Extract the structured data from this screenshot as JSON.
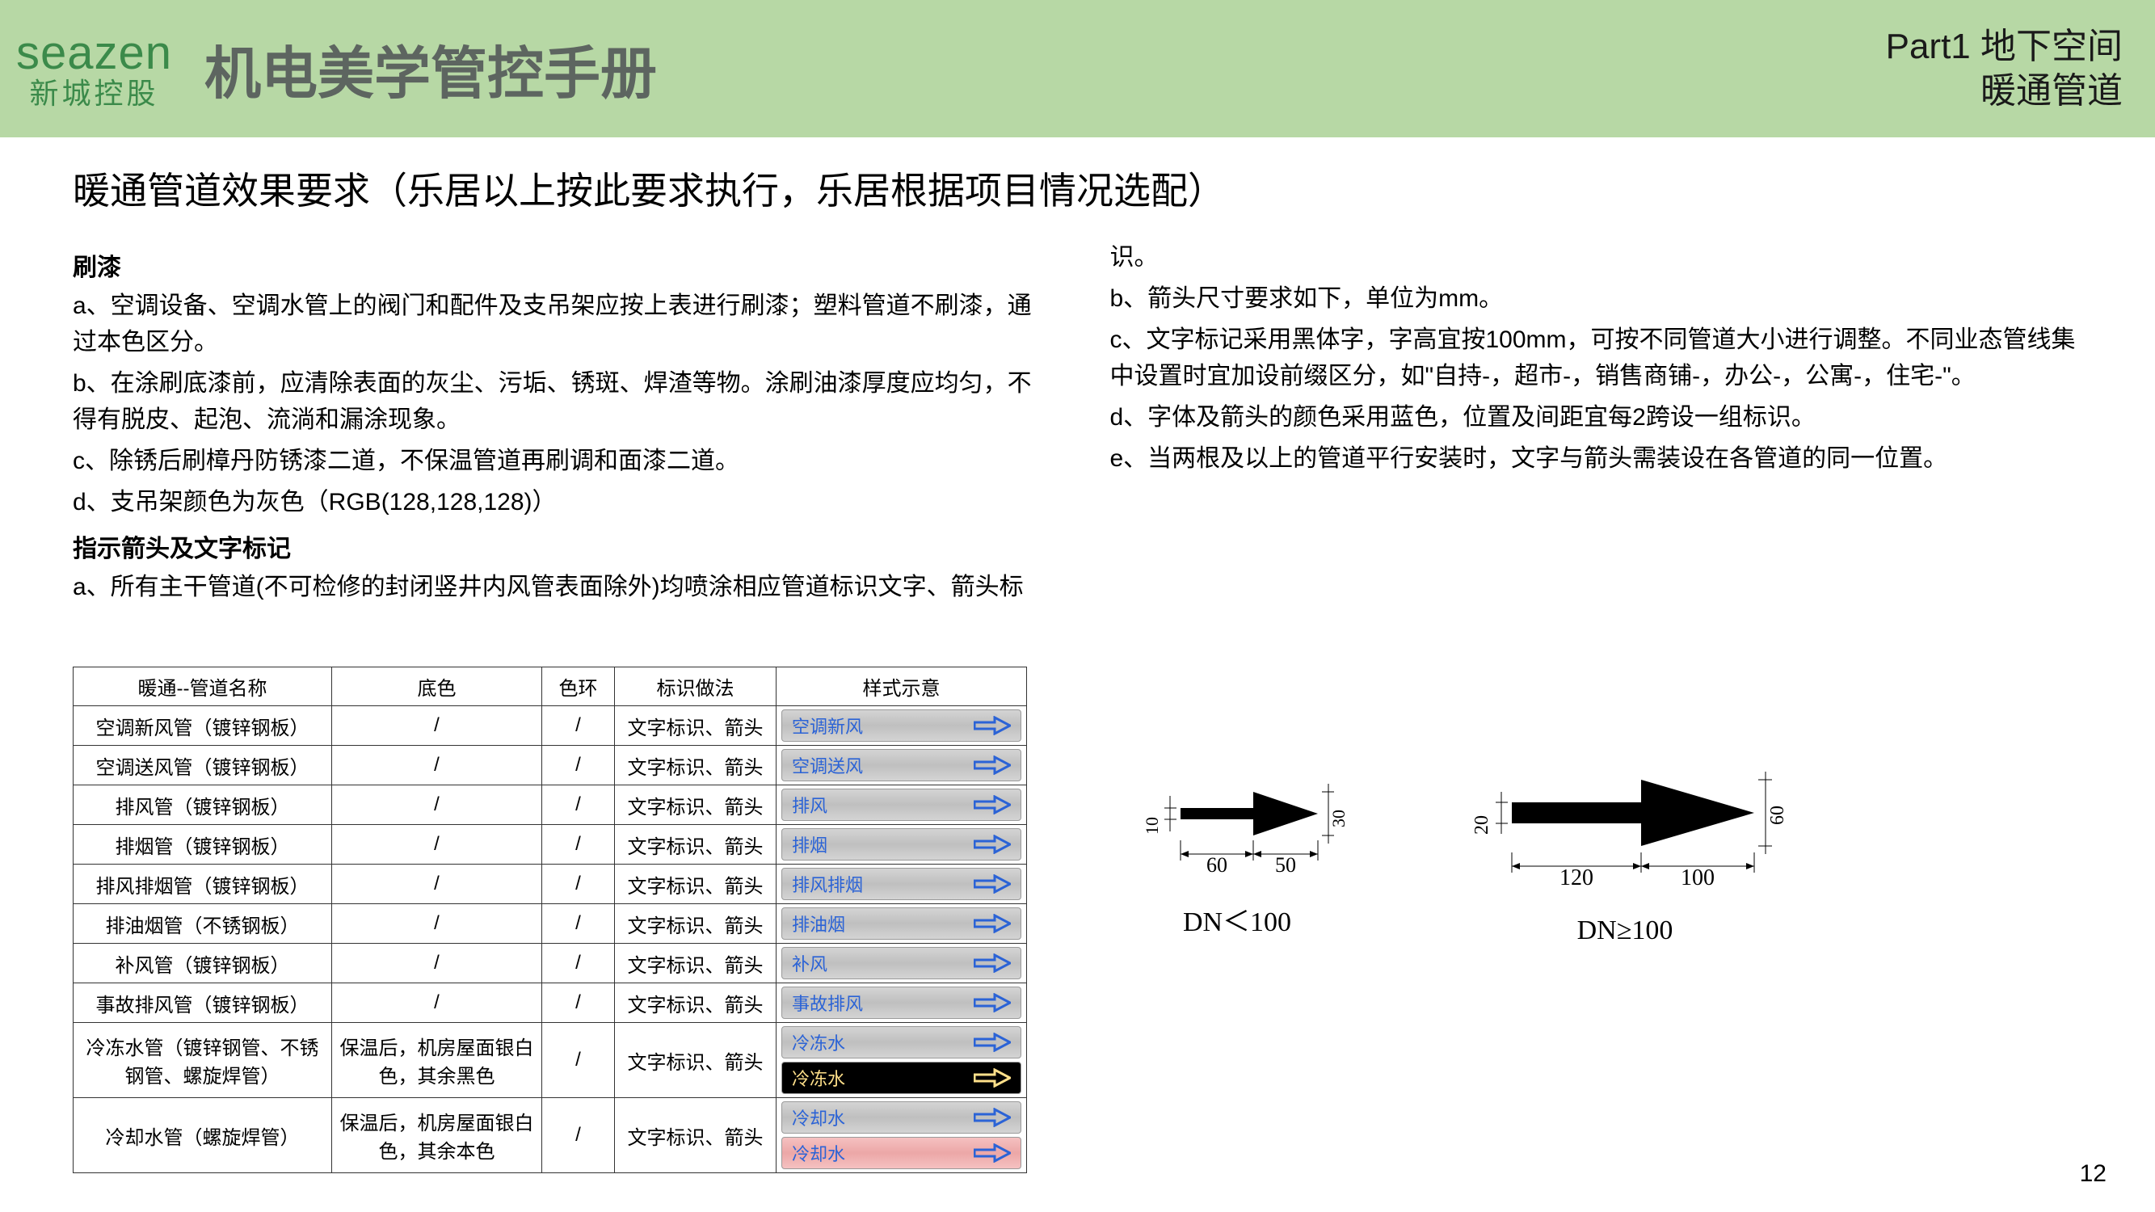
{
  "header": {
    "logo_en": "seazen",
    "logo_cn": "新城控股",
    "title": "机电美学管控手册",
    "right_line1": "Part1 地下空间",
    "right_line2": "暖通管道"
  },
  "section_title": "暖通管道效果要求（乐居以上按此要求执行，乐居根据项目情况选配）",
  "left": {
    "h1": "刷漆",
    "a": "a、空调设备、空调水管上的阀门和配件及支吊架应按上表进行刷漆；塑料管道不刷漆，通过本色区分。",
    "b": "b、在涂刷底漆前，应清除表面的灰尘、污垢、锈斑、焊渣等物。涂刷油漆厚度应均匀，不得有脱皮、起泡、流淌和漏涂现象。",
    "c": "c、除锈后刷樟丹防锈漆二道，不保温管道再刷调和面漆二道。",
    "d": "d、支吊架颜色为灰色（RGB(128,128,128)）",
    "h2": "指示箭头及文字标记",
    "a2": "a、所有主干管道(不可检修的封闭竖井内风管表面除外)均喷涂相应管道标识文字、箭头标"
  },
  "right": {
    "p0": "识。",
    "b": "b、箭头尺寸要求如下，单位为mm。",
    "c": "c、文字标记采用黑体字，字高宜按100mm，可按不同管道大小进行调整。不同业态管线集中设置时宜加设前缀区分，如\"自持-，超市-，销售商铺-，办公-，公寓-，住宅-\"。",
    "d": "d、字体及箭头的颜色采用蓝色，位置及间距宜每2跨设一组标识。",
    "e": "e、当两根及以上的管道平行安装时，文字与箭头需装设在各管道的同一位置。"
  },
  "table": {
    "headers": [
      "暖通--管道名称",
      "底色",
      "色环",
      "标识做法",
      "样式示意"
    ],
    "rows": [
      {
        "name": "空调新风管（镀锌钢板）",
        "base": "/",
        "ring": "/",
        "mark": "文字标识、箭头",
        "chips": [
          {
            "label": "空调新风",
            "style": "grey",
            "color": "#2b63d6"
          }
        ]
      },
      {
        "name": "空调送风管（镀锌钢板）",
        "base": "/",
        "ring": "/",
        "mark": "文字标识、箭头",
        "chips": [
          {
            "label": "空调送风",
            "style": "grey",
            "color": "#2b63d6"
          }
        ]
      },
      {
        "name": "排风管（镀锌钢板）",
        "base": "/",
        "ring": "/",
        "mark": "文字标识、箭头",
        "chips": [
          {
            "label": "排风",
            "style": "grey",
            "color": "#2b63d6"
          }
        ]
      },
      {
        "name": "排烟管（镀锌钢板）",
        "base": "/",
        "ring": "/",
        "mark": "文字标识、箭头",
        "chips": [
          {
            "label": "排烟",
            "style": "grey",
            "color": "#2b63d6"
          }
        ]
      },
      {
        "name": "排风排烟管（镀锌钢板）",
        "base": "/",
        "ring": "/",
        "mark": "文字标识、箭头",
        "chips": [
          {
            "label": "排风排烟",
            "style": "grey",
            "color": "#2b63d6"
          }
        ]
      },
      {
        "name": "排油烟管（不锈钢板）",
        "base": "/",
        "ring": "/",
        "mark": "文字标识、箭头",
        "chips": [
          {
            "label": "排油烟",
            "style": "grey",
            "color": "#2b63d6"
          }
        ]
      },
      {
        "name": "补风管（镀锌钢板）",
        "base": "/",
        "ring": "/",
        "mark": "文字标识、箭头",
        "chips": [
          {
            "label": "补风",
            "style": "grey",
            "color": "#2b63d6"
          }
        ]
      },
      {
        "name": "事故排风管（镀锌钢板）",
        "base": "/",
        "ring": "/",
        "mark": "文字标识、箭头",
        "chips": [
          {
            "label": "事故排风",
            "style": "grey",
            "color": "#2b63d6"
          }
        ]
      },
      {
        "name": "冷冻水管（镀锌钢管、不锈钢管、螺旋焊管）",
        "base": "保温后，机房屋面银白色，其余黑色",
        "ring": "/",
        "mark": "文字标识、箭头",
        "chips": [
          {
            "label": "冷冻水",
            "style": "grey",
            "color": "#2b63d6"
          },
          {
            "label": "冷冻水",
            "style": "black",
            "color": "#ffe08a"
          }
        ]
      },
      {
        "name": "冷却水管（螺旋焊管）",
        "base": "保温后，机房屋面银白色，其余本色",
        "ring": "/",
        "mark": "文字标识、箭头",
        "chips": [
          {
            "label": "冷却水",
            "style": "grey",
            "color": "#2b63d6"
          },
          {
            "label": "冷却水",
            "style": "pink",
            "color": "#2b63d6"
          }
        ]
      }
    ]
  },
  "diagrams": {
    "small": {
      "h": "10",
      "arrow_h": "30",
      "body_len": "60",
      "head_len": "50",
      "caption": "DN＜100"
    },
    "large": {
      "h": "20",
      "arrow_h": "60",
      "body_len": "120",
      "head_len": "100",
      "caption": "DN≥100"
    }
  },
  "page_number": "12",
  "colors": {
    "header_bg": "#b7d8a5",
    "logo": "#3b8a4a",
    "title": "#5d6560",
    "chip_text_blue": "#2b63d6"
  }
}
